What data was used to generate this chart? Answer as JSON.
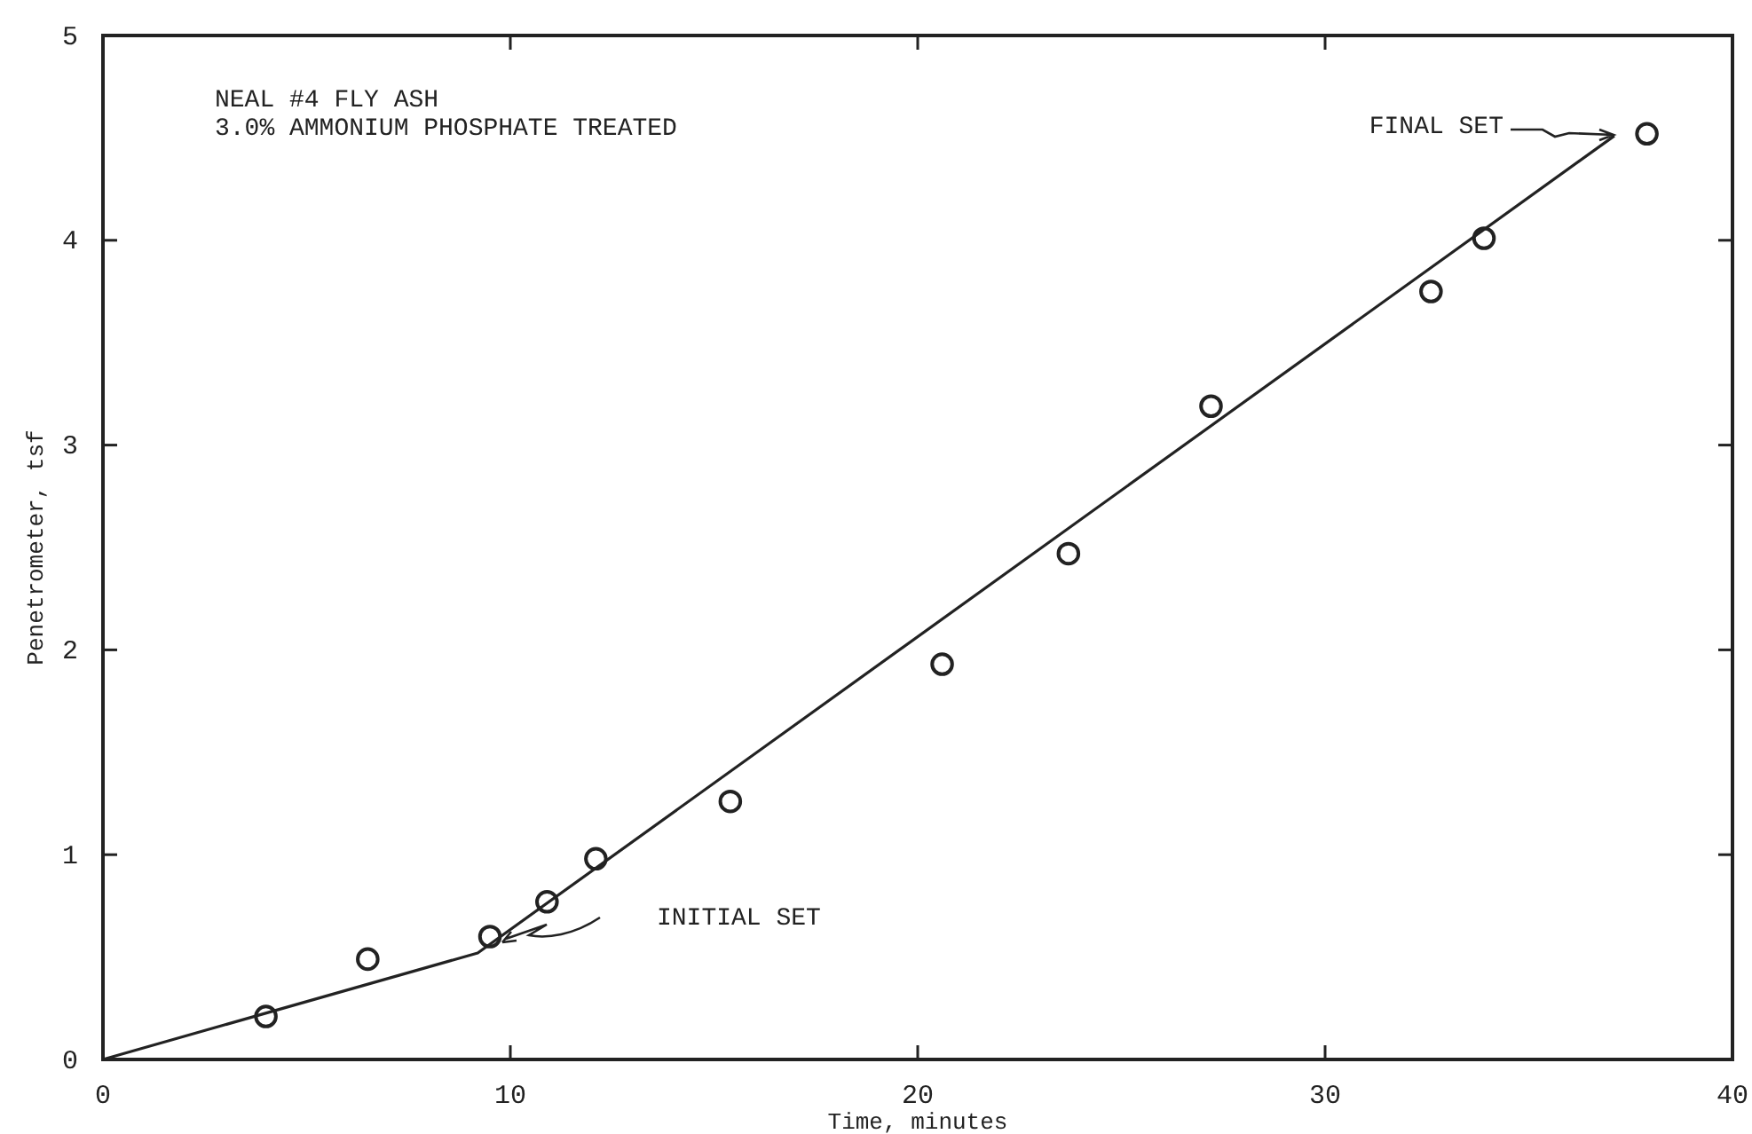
{
  "chart_data": {
    "type": "scatter",
    "title": "NEAL #4 FLY ASH",
    "subtitle": "3.0% AMMONIUM PHOSPHATE TREATED",
    "xlabel": "Time, minutes",
    "ylabel": "Penetrometer, tsf",
    "xlim": [
      0,
      40
    ],
    "xticks": [
      0,
      10,
      20,
      30,
      40
    ],
    "ylim": [
      0,
      5
    ],
    "yticks": [
      0,
      1,
      2,
      3,
      4,
      5
    ],
    "grid": false,
    "marker": "circle",
    "series": [
      {
        "color": "#222222",
        "x": [
          4.0,
          6.5,
          9.5,
          10.9,
          12.1,
          15.4,
          20.6,
          23.7,
          27.2,
          32.6,
          33.9,
          37.9
        ],
        "values": [
          0.21,
          0.49,
          0.6,
          0.77,
          0.98,
          1.26,
          1.93,
          2.47,
          3.19,
          3.75,
          4.01,
          4.52
        ]
      },
      {
        "type": "line",
        "color": "#222222",
        "line_style": "solid",
        "marker": "none",
        "x": [
          0,
          9.2,
          37.1
        ],
        "values": [
          0,
          0.52,
          4.51
        ]
      }
    ],
    "annotations": [
      "INITIAL SET",
      "FINAL SET"
    ]
  }
}
